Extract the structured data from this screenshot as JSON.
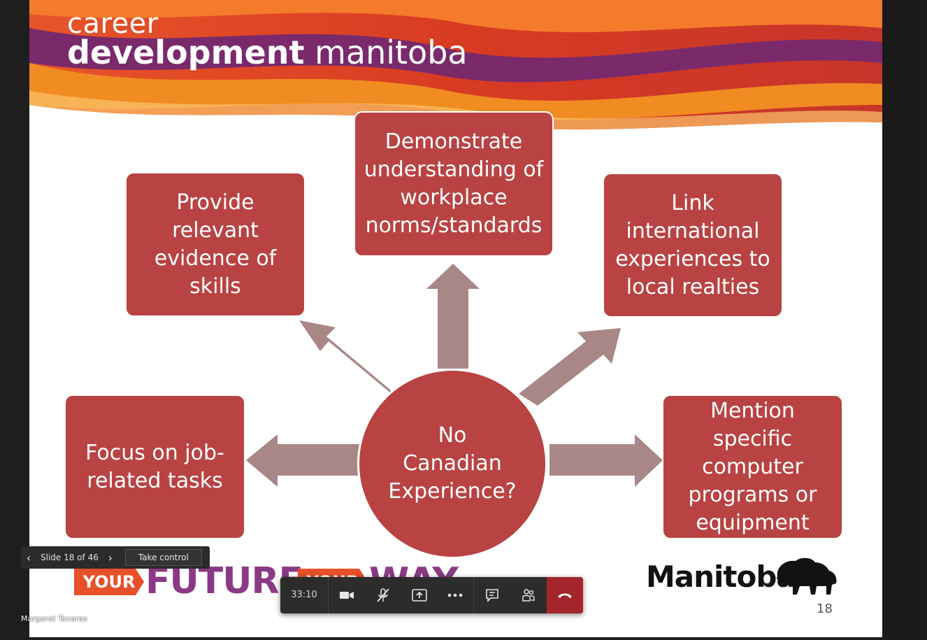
{
  "slide": {
    "logo_line1": "career",
    "logo_line2_bold": "development",
    "logo_line2_thin": "manitoba",
    "center_text": "No\nCanadian\nExperience?",
    "boxes": {
      "top_center": "Demonstrate\nunderstanding of\nworkplace\nnorms/standards",
      "top_left": "Provide\nrelevant\nevidence of\nskills",
      "top_right": "Link\ninternational\nexperiences to\nlocal realties",
      "mid_left": "Focus on job-\nrelated tasks",
      "mid_right": "Mention\nspecific\ncomputer\nprograms or\nequipment"
    },
    "footer_left_your": "YOUR",
    "footer_left_future": "FUTURE",
    "footer_left_your2": "YOUR",
    "footer_left_way": "WAY",
    "footer_right_logo": "Manitoba",
    "page_number": "18",
    "colors": {
      "box": "#b94343",
      "arrow": "#a98787"
    }
  },
  "slide_nav": {
    "prev_icon": "chevron-left-icon",
    "label": "Slide 18 of 46",
    "next_icon": "chevron-right-icon",
    "take_control": "Take control"
  },
  "call_bar": {
    "timer": "33:10",
    "buttons": [
      "camera-icon",
      "mic-muted-icon",
      "share-screen-icon",
      "more-options-icon",
      "chat-icon",
      "participants-icon",
      "hang-up-icon"
    ]
  },
  "presenter": {
    "name": "Margaret Tavares"
  }
}
